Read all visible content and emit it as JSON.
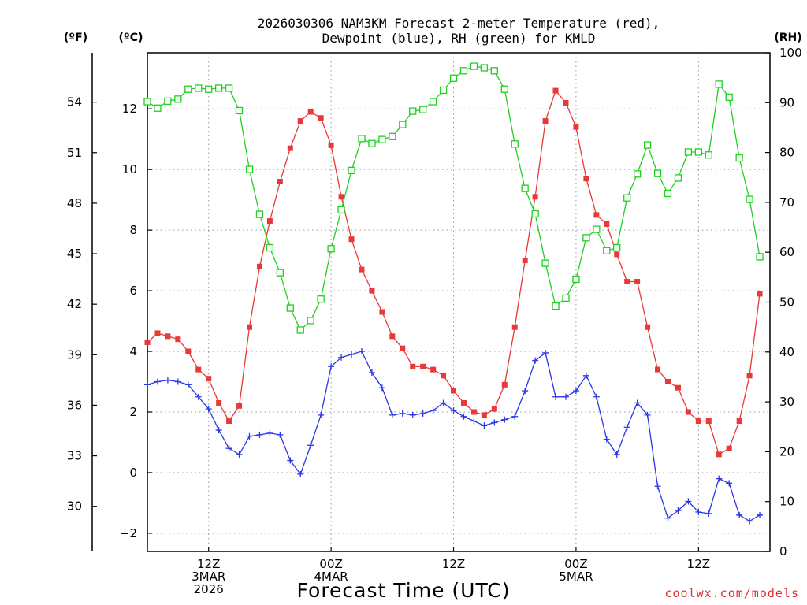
{
  "chart_data": {
    "type": "line",
    "title_line1": "2026030306 NAM3KM Forecast 2-meter Temperature (red),",
    "title_line2": "Dewpoint (blue), RH (green) for KMLD",
    "xlabel": "Forecast Time (UTC)",
    "credit": "coolwx.com/models",
    "units": {
      "f": "(ºF)",
      "c": "(ºC)",
      "rh": "(RH)"
    },
    "x_hours_range": [
      0,
      61
    ],
    "ylim_c": [
      -2.6,
      13.85
    ],
    "ylim_rh": [
      0,
      100
    ],
    "yticks_c": [
      "−2",
      "0",
      "2",
      "4",
      "6",
      "8",
      "10",
      "12"
    ],
    "yticks_c_values": [
      -2,
      0,
      2,
      4,
      6,
      8,
      10,
      12
    ],
    "yticks_f": [
      "30",
      "33",
      "36",
      "39",
      "42",
      "45",
      "48",
      "51",
      "54"
    ],
    "yticks_f_values": [
      30,
      33,
      36,
      39,
      42,
      45,
      48,
      51,
      54
    ],
    "yticks_rh": [
      "0",
      "10",
      "20",
      "30",
      "40",
      "50",
      "60",
      "70",
      "80",
      "90",
      "100"
    ],
    "yticks_rh_values": [
      0,
      10,
      20,
      30,
      40,
      50,
      60,
      70,
      80,
      90,
      100
    ],
    "xticks": [
      {
        "hour": 6,
        "lines": [
          "12Z",
          "3MAR",
          "2026"
        ]
      },
      {
        "hour": 18,
        "lines": [
          "00Z",
          "4MAR"
        ]
      },
      {
        "hour": 30,
        "lines": [
          "12Z"
        ]
      },
      {
        "hour": 42,
        "lines": [
          "00Z",
          "5MAR"
        ]
      },
      {
        "hour": 54,
        "lines": [
          "12Z"
        ]
      }
    ],
    "series": [
      {
        "name": "2-meter Temperature",
        "unit": "°C",
        "color": "#e83838",
        "marker": "filled-square",
        "axis": "c",
        "values": [
          4.3,
          4.6,
          4.5,
          4.4,
          4.0,
          3.4,
          3.1,
          2.3,
          1.7,
          2.2,
          4.8,
          6.8,
          8.3,
          9.6,
          10.7,
          11.6,
          11.9,
          11.7,
          10.8,
          9.1,
          7.7,
          6.7,
          6.0,
          5.3,
          4.5,
          4.1,
          3.5,
          3.5,
          3.4,
          3.2,
          2.7,
          2.3,
          2.0,
          1.9,
          2.1,
          2.9,
          4.8,
          7.0,
          9.1,
          11.6,
          12.6,
          12.2,
          11.4,
          9.7,
          8.5,
          8.2,
          7.2,
          6.3,
          6.3,
          4.8,
          3.4,
          3.0,
          2.8,
          2.0,
          1.7,
          1.7,
          0.6,
          0.8,
          1.7,
          3.2,
          5.9
        ]
      },
      {
        "name": "Dewpoint",
        "unit": "°C",
        "color": "#2a36e8",
        "marker": "plus",
        "axis": "c",
        "values": [
          2.9,
          3.0,
          3.05,
          3.0,
          2.9,
          2.5,
          2.1,
          1.4,
          0.8,
          0.6,
          1.2,
          1.25,
          1.3,
          1.25,
          0.4,
          -0.05,
          0.9,
          1.9,
          3.5,
          3.8,
          3.9,
          4.0,
          3.3,
          2.8,
          1.9,
          1.95,
          1.9,
          1.95,
          2.05,
          2.3,
          2.05,
          1.85,
          1.7,
          1.55,
          1.65,
          1.75,
          1.85,
          2.7,
          3.7,
          3.95,
          2.5,
          2.5,
          2.7,
          3.2,
          2.5,
          1.1,
          0.6,
          1.5,
          2.3,
          1.9,
          -0.45,
          -1.5,
          -1.25,
          -0.95,
          -1.3,
          -1.35,
          -0.2,
          -0.35,
          -1.4,
          -1.6,
          -1.4
        ]
      },
      {
        "name": "RH",
        "unit": "%",
        "color": "#20d020",
        "marker": "open-square",
        "axis": "rh",
        "values": [
          90.2,
          88.9,
          90.3,
          90.7,
          92.7,
          92.9,
          92.7,
          92.9,
          92.9,
          88.4,
          76.6,
          67.6,
          60.9,
          55.9,
          48.8,
          44.4,
          46.3,
          50.6,
          60.7,
          68.5,
          76.4,
          82.8,
          81.8,
          82.6,
          83.2,
          85.6,
          88.3,
          88.6,
          90.2,
          92.5,
          94.9,
          96.4,
          97.3,
          97.0,
          96.4,
          92.7,
          81.7,
          72.8,
          67.7,
          57.8,
          49.2,
          50.8,
          54.6,
          62.9,
          64.6,
          60.3,
          60.9,
          70.9,
          75.7,
          81.5,
          75.8,
          71.8,
          74.9,
          80.1,
          80.1,
          79.5,
          93.7,
          91.1,
          78.9,
          70.6,
          59.1
        ]
      }
    ]
  }
}
